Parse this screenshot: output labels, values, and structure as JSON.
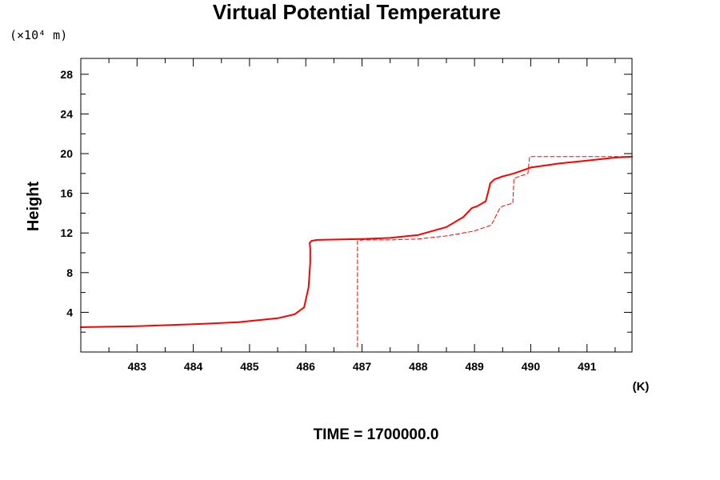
{
  "chart_data": {
    "type": "line",
    "title": "Virtual Potential Temperature",
    "units_label": "(×10⁴ m)",
    "ylabel": "Height",
    "xunit": "(K)",
    "footer": "TIME = 1700000.0",
    "xlim": [
      482.0,
      491.8
    ],
    "ylim": [
      0.0,
      29.6
    ],
    "xticks": [
      483,
      484,
      485,
      486,
      487,
      488,
      489,
      490,
      491
    ],
    "yticks": [
      4,
      8,
      12,
      16,
      20,
      24,
      28
    ],
    "grid": false,
    "series": [
      {
        "style": "solid",
        "color": "#ff0000",
        "x": [
          482.0,
          483.0,
          484.0,
          484.8,
          485.5,
          485.8,
          485.97,
          486.05,
          486.08,
          486.08,
          486.07,
          486.1,
          486.2,
          487.0,
          487.5,
          488.0,
          488.5,
          488.8,
          488.95,
          489.05,
          489.2,
          489.25,
          489.28,
          489.35,
          489.5,
          489.7,
          490.0,
          490.5,
          491.0,
          491.5,
          491.8
        ],
        "y": [
          2.5,
          2.6,
          2.8,
          3.0,
          3.4,
          3.8,
          4.5,
          6.5,
          9.0,
          10.5,
          11.0,
          11.2,
          11.3,
          11.4,
          11.5,
          11.8,
          12.6,
          13.6,
          14.5,
          14.7,
          15.2,
          16.3,
          17.0,
          17.4,
          17.7,
          18.0,
          18.6,
          19.0,
          19.3,
          19.6,
          19.7
        ]
      },
      {
        "style": "dashed",
        "color": "#ff0000",
        "x": [
          486.92,
          486.92,
          487.0,
          487.5,
          488.0,
          488.5,
          489.0,
          489.3,
          489.45,
          489.5,
          489.68,
          489.7,
          489.95,
          489.98,
          491.8
        ],
        "y": [
          0.5,
          11.2,
          11.3,
          11.3,
          11.4,
          11.7,
          12.2,
          12.8,
          14.5,
          14.7,
          15.0,
          17.5,
          18.0,
          19.7,
          19.7
        ]
      }
    ]
  }
}
